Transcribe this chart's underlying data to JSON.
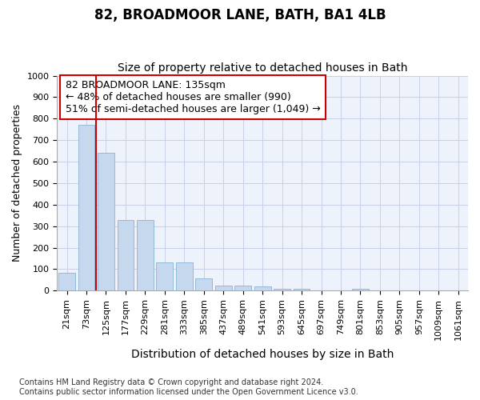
{
  "title": "82, BROADMOOR LANE, BATH, BA1 4LB",
  "subtitle": "Size of property relative to detached houses in Bath",
  "xlabel": "Distribution of detached houses by size in Bath",
  "ylabel": "Number of detached properties",
  "categories": [
    "21sqm",
    "73sqm",
    "125sqm",
    "177sqm",
    "229sqm",
    "281sqm",
    "333sqm",
    "385sqm",
    "437sqm",
    "489sqm",
    "541sqm",
    "593sqm",
    "645sqm",
    "697sqm",
    "749sqm",
    "801sqm",
    "853sqm",
    "905sqm",
    "957sqm",
    "1009sqm",
    "1061sqm"
  ],
  "values": [
    83,
    770,
    640,
    330,
    330,
    133,
    133,
    58,
    22,
    22,
    18,
    10,
    10,
    0,
    0,
    10,
    0,
    0,
    0,
    0,
    0
  ],
  "bar_color": "#c5d8ee",
  "bar_edge_color": "#8ab4d4",
  "vline_index": 2,
  "vline_color": "#cc0000",
  "annotation_text": "82 BROADMOOR LANE: 135sqm\n← 48% of detached houses are smaller (990)\n51% of semi-detached houses are larger (1,049) →",
  "annotation_box_facecolor": "#ffffff",
  "annotation_box_edgecolor": "#cc0000",
  "ylim": [
    0,
    1000
  ],
  "yticks": [
    0,
    100,
    200,
    300,
    400,
    500,
    600,
    700,
    800,
    900,
    1000
  ],
  "footer_text": "Contains HM Land Registry data © Crown copyright and database right 2024.\nContains public sector information licensed under the Open Government Licence v3.0.",
  "bg_color": "#eef2fb",
  "grid_color": "#c8d0e8",
  "title_fontsize": 12,
  "subtitle_fontsize": 10,
  "xlabel_fontsize": 10,
  "ylabel_fontsize": 9,
  "tick_fontsize": 8,
  "annotation_fontsize": 9,
  "footer_fontsize": 7
}
